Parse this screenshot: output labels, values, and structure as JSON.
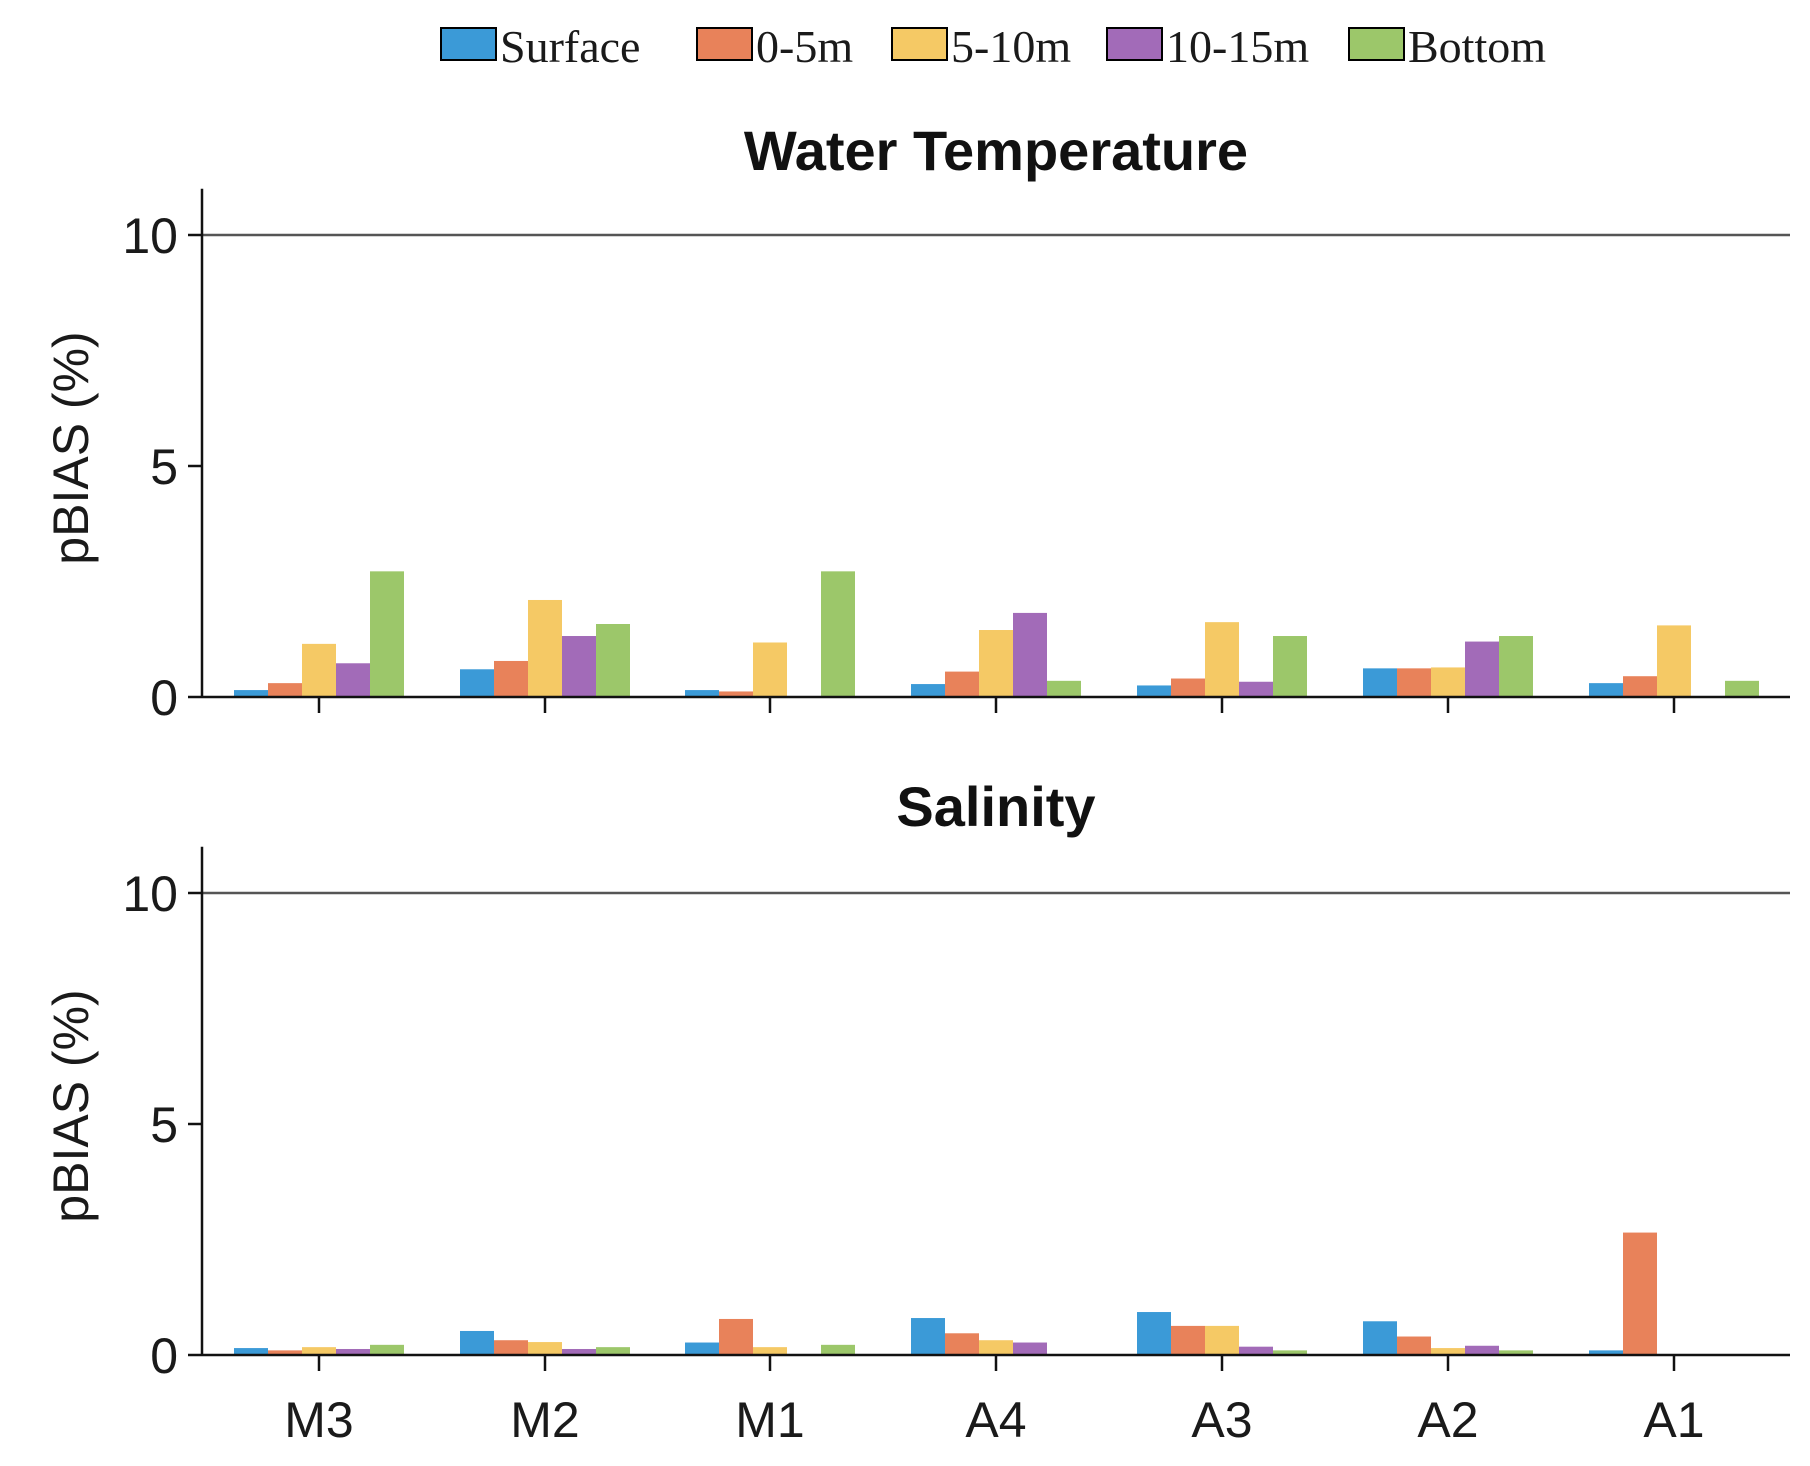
{
  "legend": [
    {
      "label": "Surface",
      "color": "#3b9ad7"
    },
    {
      "label": "0-5m",
      "color": "#e8825a"
    },
    {
      "label": "5-10m",
      "color": "#f5c965"
    },
    {
      "label": "10-15m",
      "color": "#a26bb8"
    },
    {
      "label": "Bottom",
      "color": "#9cc76a"
    }
  ],
  "chart_data": [
    {
      "type": "bar",
      "title": "Water Temperature",
      "ylabel": "pBIAS (%)",
      "xlabel": "",
      "ylim": [
        0,
        11
      ],
      "yticks": [
        0,
        5,
        10
      ],
      "reference_line": 10,
      "categories": [
        "M3",
        "M2",
        "M1",
        "A4",
        "A3",
        "A2",
        "A1"
      ],
      "series": [
        {
          "name": "Surface",
          "values": [
            0.15,
            0.6,
            0.15,
            0.28,
            0.25,
            0.62,
            0.3
          ]
        },
        {
          "name": "0-5m",
          "values": [
            0.3,
            0.78,
            0.12,
            0.55,
            0.4,
            0.62,
            0.45
          ]
        },
        {
          "name": "5-10m",
          "values": [
            1.15,
            2.1,
            1.18,
            1.45,
            1.62,
            0.64,
            1.55
          ]
        },
        {
          "name": "10-15m",
          "values": [
            0.73,
            1.32,
            0,
            1.82,
            0.33,
            1.2,
            0
          ]
        },
        {
          "name": "Bottom",
          "values": [
            2.72,
            1.58,
            2.72,
            0.35,
            1.32,
            1.32,
            0.35
          ]
        }
      ]
    },
    {
      "type": "bar",
      "title": "Salinity",
      "ylabel": "pBIAS (%)",
      "xlabel": "",
      "ylim": [
        0,
        11
      ],
      "yticks": [
        0,
        5,
        10
      ],
      "reference_line": 10,
      "categories": [
        "M3",
        "M2",
        "M1",
        "A4",
        "A3",
        "A2",
        "A1"
      ],
      "series": [
        {
          "name": "Surface",
          "values": [
            0.15,
            0.52,
            0.27,
            0.8,
            0.93,
            0.73,
            0.1
          ]
        },
        {
          "name": "0-5m",
          "values": [
            0.1,
            0.32,
            0.78,
            0.47,
            0.63,
            0.4,
            2.65
          ]
        },
        {
          "name": "5-10m",
          "values": [
            0.17,
            0.28,
            0.17,
            0.32,
            0.63,
            0.15,
            0
          ]
        },
        {
          "name": "10-15m",
          "values": [
            0.13,
            0.13,
            0,
            0.27,
            0.18,
            0.2,
            0
          ]
        },
        {
          "name": "Bottom",
          "values": [
            0.22,
            0.17,
            0.22,
            0,
            0.1,
            0.1,
            0
          ]
        }
      ]
    }
  ]
}
